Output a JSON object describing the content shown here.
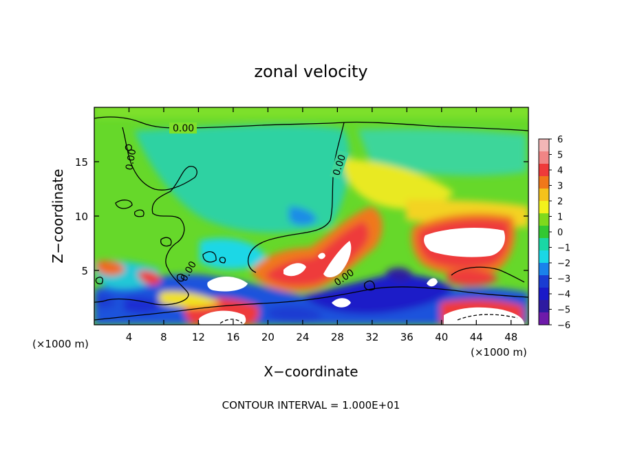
{
  "chart_data": {
    "type": "heatmap",
    "title": "zonal velocity",
    "xlabel": "X−coordinate",
    "ylabel": "Z−coordinate",
    "x_unit_left": "(×1000 m)",
    "x_unit_right": "(×1000 m)",
    "xlim": [
      0,
      50
    ],
    "ylim": [
      0,
      20
    ],
    "x_ticks": [
      4,
      8,
      12,
      16,
      20,
      24,
      28,
      32,
      36,
      40,
      44,
      48
    ],
    "y_ticks": [
      5,
      10,
      15
    ],
    "contour_label": "0.00",
    "footer": "CONTOUR INTERVAL = 1.000E+01",
    "colorbar": {
      "ticks": [
        6,
        5,
        4,
        3,
        2,
        1,
        0,
        -1,
        -2,
        -3,
        -4,
        -5,
        -6
      ],
      "tick_labels": [
        "6",
        "5",
        "4",
        "3",
        "2",
        "1",
        "0",
        "−1",
        "−2",
        "−3",
        "−4",
        "−5",
        "−6"
      ],
      "colors": [
        "#f3b6b6",
        "#f08585",
        "#ee3a3a",
        "#f0781a",
        "#f5c21c",
        "#f2f21c",
        "#7fd91c",
        "#32c832",
        "#1ad7a5",
        "#1ad7e6",
        "#1a82eb",
        "#1a3cd2",
        "#1a1ac8",
        "#2d1aa0",
        "#6e1aaa"
      ]
    }
  }
}
